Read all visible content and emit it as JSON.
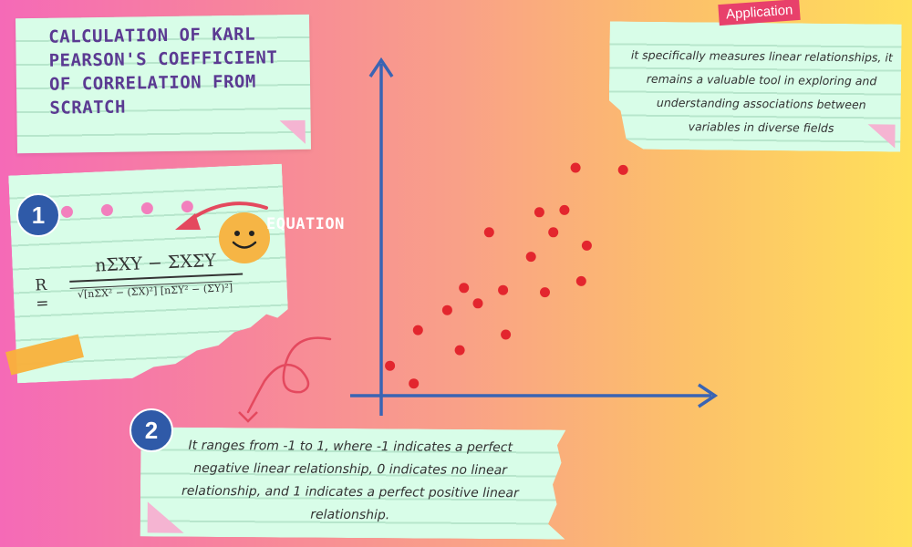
{
  "title": "Calculation of Karl Pearson's Coefficient of Correlation from Scratch",
  "step1": {
    "number": "1",
    "label": "EQUATION",
    "formula": {
      "lhs": "R =",
      "numerator": "nΣXY − ΣXΣY",
      "denominator": "√[nΣX² − (ΣX)²] [nΣY² − (ΣY)²]"
    }
  },
  "step2": {
    "number": "2",
    "text": "It ranges from -1 to 1, where -1 indicates a perfect negative linear relationship, 0 indicates no linear relationship, and 1 indicates a perfect positive linear relationship."
  },
  "application": {
    "tag": "Application",
    "text": "it specifically measures linear relationships, it remains a valuable tool in exploring and understanding associations between variables in diverse fields"
  },
  "colors": {
    "axis": "#3a64b3",
    "point": "#e3262e",
    "note": "#d8fde8",
    "title_text": "#5b3a92",
    "arrow": "#e4495e",
    "badge": "#2f5aa8"
  },
  "chart_data": {
    "type": "scatter",
    "title": "",
    "xlabel": "",
    "ylabel": "",
    "grid": false,
    "xlim": [
      0,
      10
    ],
    "ylim": [
      0,
      10
    ],
    "points": [
      {
        "x": 0.25,
        "y": 1.1
      },
      {
        "x": 1.1,
        "y": 0.3
      },
      {
        "x": 1.25,
        "y": 2.7
      },
      {
        "x": 2.3,
        "y": 3.6
      },
      {
        "x": 2.75,
        "y": 1.8
      },
      {
        "x": 2.9,
        "y": 4.6
      },
      {
        "x": 3.4,
        "y": 3.9
      },
      {
        "x": 3.8,
        "y": 7.1
      },
      {
        "x": 4.3,
        "y": 4.5
      },
      {
        "x": 4.4,
        "y": 2.5
      },
      {
        "x": 5.3,
        "y": 6.0
      },
      {
        "x": 5.6,
        "y": 8.0
      },
      {
        "x": 5.8,
        "y": 4.4
      },
      {
        "x": 6.1,
        "y": 7.1
      },
      {
        "x": 6.5,
        "y": 8.1
      },
      {
        "x": 6.9,
        "y": 10.0
      },
      {
        "x": 7.1,
        "y": 4.9
      },
      {
        "x": 7.3,
        "y": 6.5
      },
      {
        "x": 8.6,
        "y": 9.9
      }
    ]
  }
}
